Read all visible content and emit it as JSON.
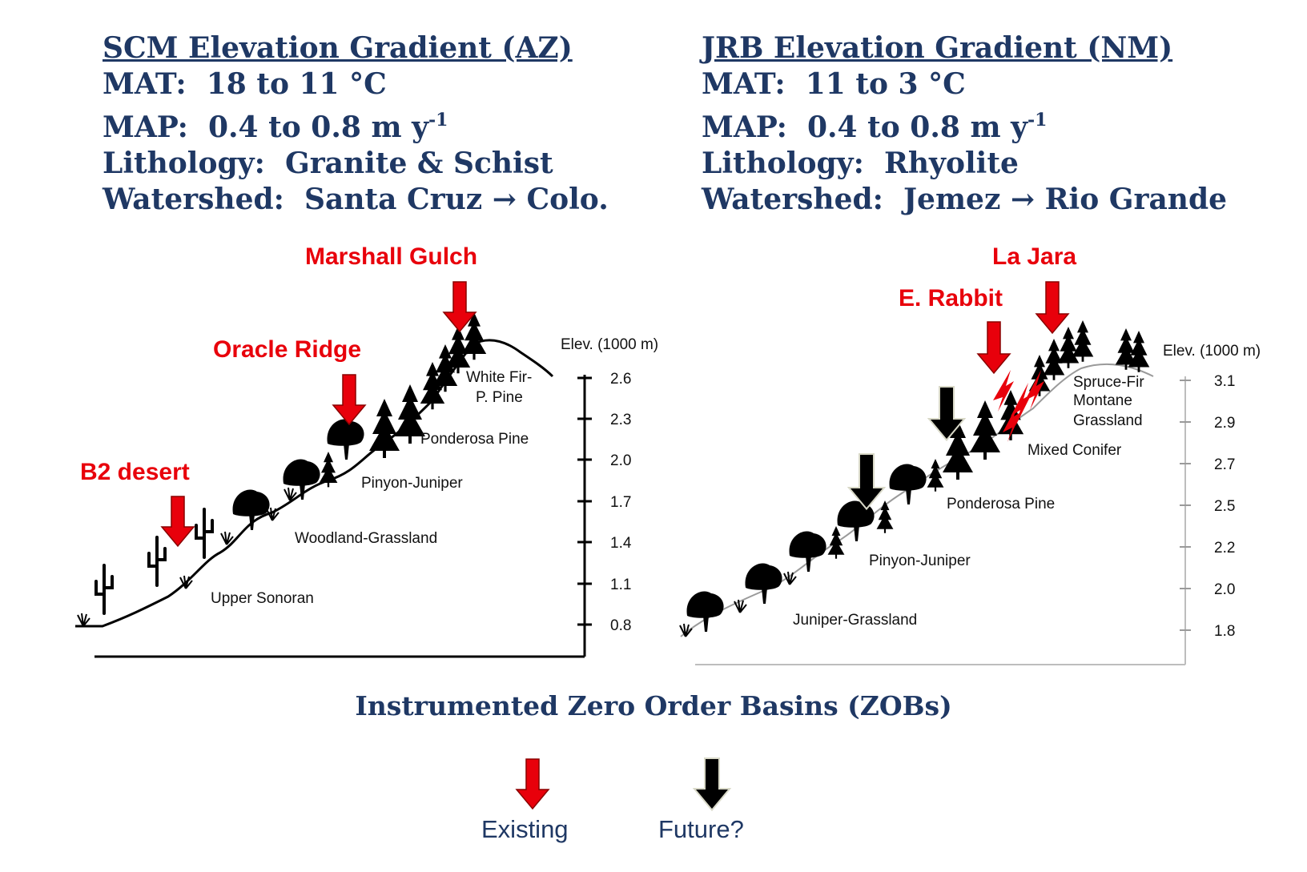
{
  "left_panel": {
    "title": "SCM Elevation Gradient (AZ)",
    "mat_label": "MAT:",
    "mat_value": "18 to 11 °C",
    "map_label": "MAP:",
    "map_value": "0.4 to 0.8 m y",
    "map_sup": "-1",
    "lithology_label": "Lithology:",
    "lithology_value": "Granite & Schist",
    "watershed_label": "Watershed:",
    "watershed_value": "Santa Cruz → Colo.",
    "axis_title": "Elev. (1000 m)",
    "ticks": [
      "2.6",
      "2.3",
      "2.0",
      "1.7",
      "1.4",
      "1.1",
      "0.8"
    ],
    "zones": [
      "White Fir-",
      "P. Pine",
      "Ponderosa Pine",
      "Pinyon-Juniper",
      "Woodland-Grassland",
      "Upper Sonoran"
    ],
    "sites": [
      "Marshall Gulch",
      "Oracle Ridge",
      "B2 desert"
    ]
  },
  "right_panel": {
    "title": "JRB Elevation Gradient (NM)",
    "mat_label": "MAT:",
    "mat_value": "11 to 3 °C",
    "map_label": "MAP:",
    "map_value": "0.4 to 0.8 m y",
    "map_sup": "-1",
    "lithology_label": "Lithology:",
    "lithology_value": "Rhyolite",
    "watershed_label": "Watershed:",
    "watershed_value": "Jemez → Rio Grande",
    "axis_title": "Elev. (1000 m)",
    "ticks": [
      "3.1",
      "2.9",
      "2.7",
      "2.5",
      "2.2",
      "2.0",
      "1.8"
    ],
    "zones": [
      "Spruce-Fir",
      "Montane",
      "Grassland",
      "Mixed Conifer",
      "Ponderosa Pine",
      "Pinyon-Juniper",
      "Juniper-Grassland"
    ],
    "sites": [
      "La Jara",
      "E. Rabbit"
    ]
  },
  "footer": {
    "title": "Instrumented Zero Order Basins (ZOBs)",
    "legend_existing": "Existing",
    "legend_future": "Future?"
  },
  "colors": {
    "navy": "#1f3864",
    "red": "#e8000b",
    "black": "#000000"
  }
}
